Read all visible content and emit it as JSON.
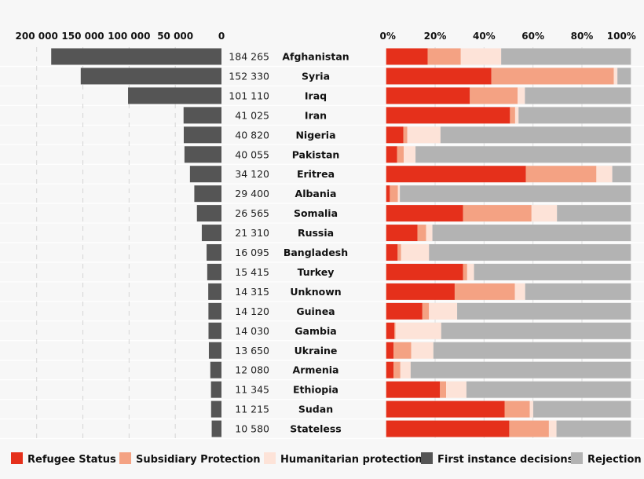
{
  "chart_data": [
    {
      "type": "bar",
      "orientation": "horizontal-reversed",
      "series_name": "First instance decisions",
      "xlim": [
        0,
        200000
      ],
      "ticks": [
        200000,
        150000,
        100000,
        50000,
        0
      ],
      "tick_labels": [
        "200 000",
        "150 000",
        "100 000",
        "50 000",
        "0"
      ],
      "grid": true,
      "categories": [
        "Afghanistan",
        "Syria",
        "Iraq",
        "Iran",
        "Nigeria",
        "Pakistan",
        "Eritrea",
        "Albania",
        "Somalia",
        "Russia",
        "Bangladesh",
        "Turkey",
        "Unknown",
        "Guinea",
        "Gambia",
        "Ukraine",
        "Armenia",
        "Ethiopia",
        "Sudan",
        "Stateless"
      ],
      "values": [
        184265,
        152330,
        101110,
        41025,
        40820,
        40055,
        34120,
        29400,
        26565,
        21310,
        16095,
        15415,
        14315,
        14120,
        14030,
        13650,
        12080,
        11345,
        11215,
        10580
      ],
      "value_labels": [
        "184 265",
        "152 330",
        "101 110",
        "41 025",
        "40 820",
        "40 055",
        "34 120",
        "29 400",
        "26 565",
        "21 310",
        "16 095",
        "15 415",
        "14 315",
        "14 120",
        "14 030",
        "13 650",
        "12 080",
        "11 345",
        "11 215",
        "10 580"
      ],
      "color": "#555555"
    },
    {
      "type": "bar",
      "orientation": "horizontal",
      "stacked": true,
      "percent": true,
      "xlim": [
        0,
        100
      ],
      "tick_labels": [
        "0%",
        "20%",
        "40%",
        "60%",
        "80%",
        "100%"
      ],
      "grid": true,
      "series": [
        {
          "name": "Refugee Status",
          "color": "#e5301b",
          "values": [
            17,
            43,
            34.2,
            50.6,
            7,
            4.5,
            57.1,
            1.5,
            31.4,
            12.8,
            4.7,
            31.4,
            28,
            14.8,
            3.4,
            3,
            3,
            22,
            48.4,
            50.3
          ]
        },
        {
          "name": "Subsidiary Protection",
          "color": "#f4a283",
          "values": [
            13.5,
            50,
            19.5,
            2.1,
            1.6,
            2.7,
            28.8,
            3.3,
            28,
            3.5,
            1.4,
            1.7,
            24.6,
            2.7,
            0.4,
            7.2,
            2.8,
            2.5,
            10.3,
            16.2
          ]
        },
        {
          "name": "Humanitarian protection",
          "color": "#fde3d8",
          "values": [
            16.5,
            1.5,
            3,
            1.4,
            13.6,
            4.8,
            6.5,
            0.8,
            10.4,
            2.6,
            11.4,
            2.8,
            4.2,
            11.5,
            18.7,
            9.1,
            4.2,
            8.3,
            1.4,
            3.1
          ]
        },
        {
          "name": "Rejection",
          "color": "#b3b3b3",
          "values": [
            53,
            5.5,
            43.3,
            45.9,
            77.8,
            88,
            7.6,
            94.4,
            30.2,
            81.1,
            82.5,
            64.1,
            43.2,
            71,
            77.5,
            80.7,
            90,
            67.2,
            39.9,
            30.4
          ]
        }
      ]
    }
  ],
  "legend": {
    "placement": "bottom",
    "items": [
      {
        "label": "Refugee Status",
        "color": "#e5301b"
      },
      {
        "label": "Subsidiary Protection",
        "color": "#f4a283"
      },
      {
        "label": "Humanitarian protection",
        "color": "#fde3d8"
      },
      {
        "label": "First instance decisions",
        "color": "#555555"
      },
      {
        "label": "Rejection",
        "color": "#b3b3b3"
      }
    ]
  }
}
